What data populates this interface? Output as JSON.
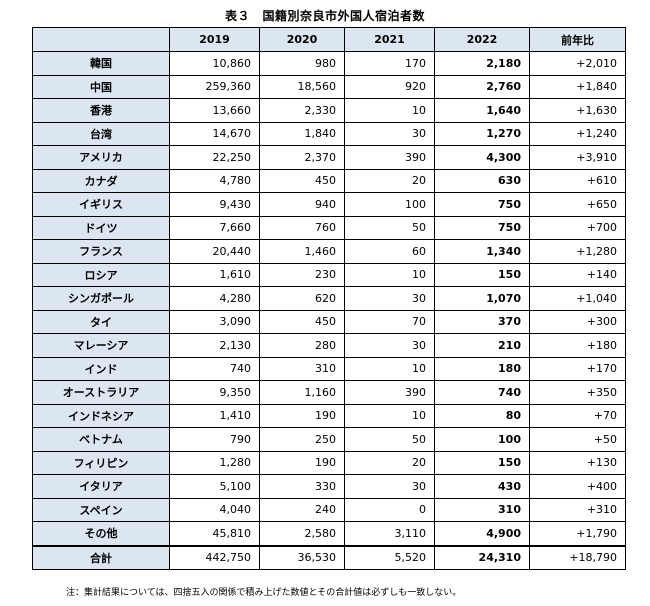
{
  "title": "表３　国籍別奈良市外国人宿泊者数",
  "headers": [
    "",
    "2019",
    "2020",
    "2021",
    "2022",
    "前年比"
  ],
  "rows": [
    [
      "韓国",
      "10,860",
      "980",
      "170",
      "2,180",
      "+2,010"
    ],
    [
      "中国",
      "259,360",
      "18,560",
      "920",
      "2,760",
      "+1,840"
    ],
    [
      "香港",
      "13,660",
      "2,330",
      "10",
      "1,640",
      "+1,630"
    ],
    [
      "台湾",
      "14,670",
      "1,840",
      "30",
      "1,270",
      "+1,240"
    ],
    [
      "アメリカ",
      "22,250",
      "2,370",
      "390",
      "4,300",
      "+3,910"
    ],
    [
      "カナダ",
      "4,780",
      "450",
      "20",
      "630",
      "+610"
    ],
    [
      "イギリス",
      "9,430",
      "940",
      "100",
      "750",
      "+650"
    ],
    [
      "ドイツ",
      "7,660",
      "760",
      "50",
      "750",
      "+700"
    ],
    [
      "フランス",
      "20,440",
      "1,460",
      "60",
      "1,340",
      "+1,280"
    ],
    [
      "ロシア",
      "1,610",
      "230",
      "10",
      "150",
      "+140"
    ],
    [
      "シンガポール",
      "4,280",
      "620",
      "30",
      "1,070",
      "+1,040"
    ],
    [
      "タイ",
      "3,090",
      "450",
      "70",
      "370",
      "+300"
    ],
    [
      "マレーシア",
      "2,130",
      "280",
      "30",
      "210",
      "+180"
    ],
    [
      "インド",
      "740",
      "310",
      "10",
      "180",
      "+170"
    ],
    [
      "オーストラリア",
      "9,350",
      "1,160",
      "390",
      "740",
      "+350"
    ],
    [
      "インドネシア",
      "1,410",
      "190",
      "10",
      "80",
      "+70"
    ],
    [
      "ベトナム",
      "790",
      "250",
      "50",
      "100",
      "+50"
    ],
    [
      "フィリピン",
      "1,280",
      "190",
      "20",
      "150",
      "+130"
    ],
    [
      "イタリア",
      "5,100",
      "330",
      "30",
      "430",
      "+400"
    ],
    [
      "スペイン",
      "4,040",
      "240",
      "0",
      "310",
      "+310"
    ],
    [
      "その他",
      "45,810",
      "2,580",
      "3,110",
      "4,900",
      "+1,790"
    ]
  ],
  "total": [
    "合計",
    "442,750",
    "36,530",
    "5,520",
    "24,310",
    "+18,790"
  ],
  "note": "注：集計結果については、四捨五入の関係で積み上げた数値とその合計値は必ずしも一致しない。",
  "colors": {
    "header_bg": "#dce6f1",
    "border": "#000000"
  }
}
